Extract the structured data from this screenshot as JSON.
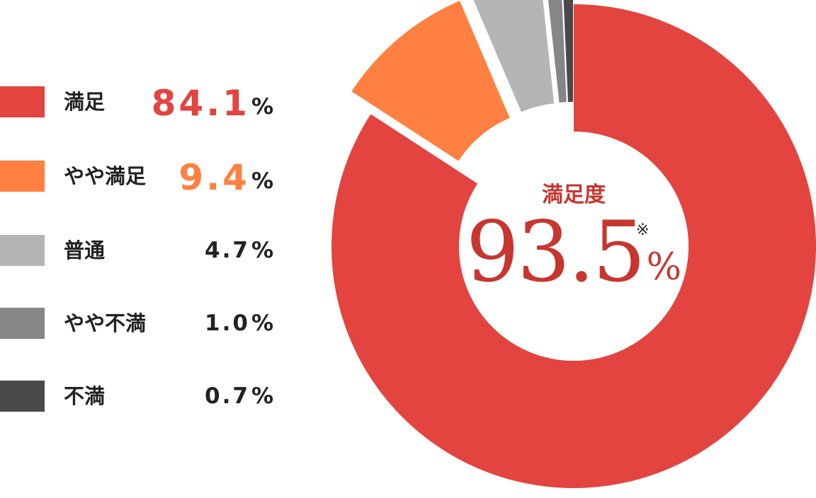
{
  "chart_data": {
    "type": "pie",
    "style": "donut",
    "categories": [
      "満足",
      "やや満足",
      "普通",
      "やや不満",
      "不満"
    ],
    "values": [
      84.1,
      9.4,
      4.7,
      1.0,
      0.7
    ],
    "value_labels": [
      "84.1",
      "9.4",
      "4.7",
      "1.0",
      "0.7"
    ],
    "unit": "%",
    "colors": [
      "#e4443f",
      "#ff8040",
      "#b5b5b5",
      "#868686",
      "#4a4a4a"
    ],
    "emphasized": [
      true,
      true,
      false,
      false,
      false
    ],
    "legend_position": "left",
    "exploded_slices": [
      1,
      2,
      3,
      4
    ],
    "center": {
      "title": "満足度",
      "value": "93.5",
      "unit": "%",
      "note_mark": "※"
    }
  }
}
